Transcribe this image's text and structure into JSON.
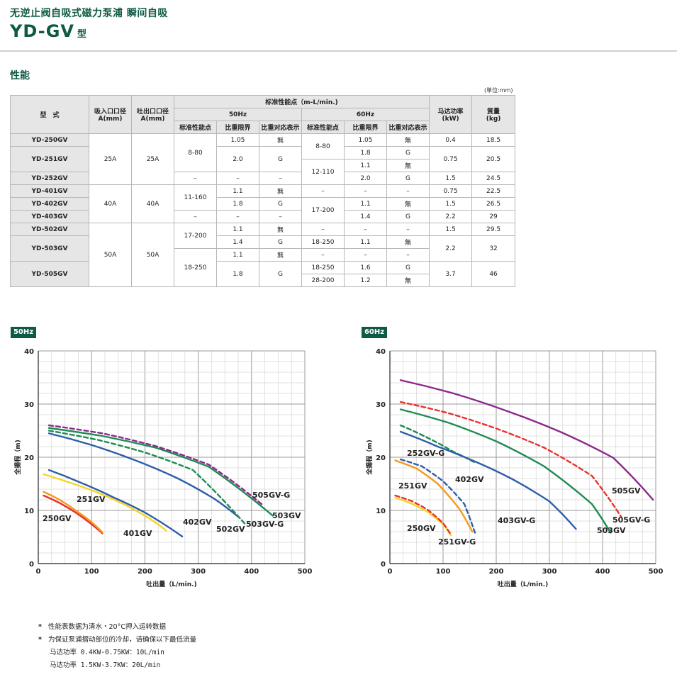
{
  "header": {
    "subtitle": "无逆止阀自吸式磁力泵浦 瞬间自吸",
    "model": "YD-GV",
    "model_suffix": "型"
  },
  "section_title": "性能",
  "unit_note": "(単位:mm)",
  "table": {
    "head": {
      "model": "型　式",
      "suction": "吸入口口径\nA(mm)",
      "discharge": "吐出口口径\nA(mm)",
      "perf": "标准性能点（m-L/min.)",
      "hz50": "50Hz",
      "hz60": "60Hz",
      "std_point": "标准性能点",
      "sg_limit": "比重限界",
      "sg_display": "比重对応表示",
      "power": "马达功率\n(kW)",
      "weight": "質量\n(kg)"
    },
    "rows": [
      [
        "YD-250GV",
        "25A",
        "25A",
        "8-80",
        "1.05",
        "無",
        "8-80",
        "1.05",
        "無",
        "0.4",
        "18.5"
      ],
      [
        "YD-251GV",
        "",
        "",
        "",
        "2.0",
        "G",
        "",
        "1.8",
        "G",
        "0.75",
        "20.5"
      ],
      [
        "",
        "",
        "",
        "",
        "",
        "",
        "12-110",
        "1.1",
        "無",
        "",
        ""
      ],
      [
        "YD-252GV",
        "",
        "",
        "–",
        "–",
        "–",
        "",
        "2.0",
        "G",
        "1.5",
        "24.5"
      ],
      [
        "YD-401GV",
        "40A",
        "40A",
        "11-160",
        "1.1",
        "無",
        "–",
        "–",
        "–",
        "0.75",
        "22.5"
      ],
      [
        "YD-402GV",
        "",
        "",
        "",
        "1.8",
        "G",
        "17-200",
        "1.1",
        "無",
        "1.5",
        "26.5"
      ],
      [
        "YD-403GV",
        "",
        "",
        "–",
        "–",
        "–",
        "",
        "1.4",
        "G",
        "2.2",
        "29"
      ],
      [
        "YD-502GV",
        "50A",
        "50A",
        "17-200",
        "1.1",
        "無",
        "–",
        "–",
        "–",
        "1.5",
        "29.5"
      ],
      [
        "YD-503GV",
        "",
        "",
        "",
        "1.4",
        "G",
        "18-250",
        "1.1",
        "無",
        "2.2",
        "32"
      ],
      [
        "",
        "",
        "",
        "18-250",
        "1.1",
        "無",
        "–",
        "–",
        "–",
        "",
        ""
      ],
      [
        "YD-505GV",
        "",
        "",
        "",
        "1.8",
        "G",
        "18-250",
        "1.6",
        "G",
        "3.7",
        "46"
      ],
      [
        "",
        "",
        "",
        "",
        "",
        "",
        "28-200",
        "1.2",
        "無",
        "",
        ""
      ]
    ]
  },
  "chart_data": [
    {
      "type": "line",
      "title": "50Hz",
      "xlabel": "吐出量（L/min.)",
      "ylabel": "全揚程（m)",
      "xlim": [
        0,
        500
      ],
      "ylim": [
        0,
        40
      ],
      "xticks": [
        "0",
        "100",
        "200",
        "300",
        "400",
        "500"
      ],
      "yticks": [
        "0",
        "10",
        "20",
        "30",
        "40"
      ],
      "grid": true,
      "series": [
        {
          "name": "250GV",
          "color": "#e8322c",
          "dashed": false,
          "x": [
            10,
            40,
            70,
            100,
            120
          ],
          "y": [
            12.8,
            11.4,
            9.6,
            7.4,
            5.7
          ]
        },
        {
          "name": "251GV",
          "color": "#f39a1c",
          "dashed": false,
          "x": [
            10,
            40,
            70,
            100,
            120
          ],
          "y": [
            13.5,
            12.0,
            10.0,
            7.8,
            5.9
          ]
        },
        {
          "name": "401GV",
          "color": "#f6d526",
          "dashed": false,
          "x": [
            10,
            60,
            110,
            160,
            210,
            240
          ],
          "y": [
            16.8,
            15.2,
            13.4,
            11.2,
            8.4,
            6.2
          ]
        },
        {
          "name": "402GV",
          "color": "#2e5ea8",
          "dashed": false,
          "x": [
            20,
            80,
            140,
            200,
            270
          ],
          "y": [
            17.6,
            15.2,
            12.5,
            9.6,
            5.1
          ]
        },
        {
          "name": "502GV",
          "color": "#2e5ea8",
          "dashed": false,
          "x": [
            20,
            100,
            180,
            260,
            330,
            375
          ],
          "y": [
            24.5,
            22.3,
            19.5,
            16.1,
            12.2,
            8.8
          ]
        },
        {
          "name": "503GV-G",
          "color": "#1f8c52",
          "dashed": true,
          "x": [
            20,
            110,
            200,
            290,
            390
          ],
          "y": [
            25.0,
            23.3,
            20.9,
            17.6,
            7.2
          ]
        },
        {
          "name": "503GV",
          "color": "#1f8c52",
          "dashed": false,
          "x": [
            20,
            120,
            220,
            320,
            440
          ],
          "y": [
            25.5,
            24.0,
            21.8,
            18.2,
            9.0
          ]
        },
        {
          "name": "505GV-G",
          "color": "#8a2a8c",
          "dashed": true,
          "x": [
            20,
            120,
            220,
            320,
            420
          ],
          "y": [
            26.0,
            24.5,
            22.1,
            18.6,
            11.1
          ]
        }
      ]
    },
    {
      "type": "line",
      "title": "60Hz",
      "xlabel": "吐出量（L/min.)",
      "ylabel": "全揚程（m)",
      "xlim": [
        0,
        500
      ],
      "ylim": [
        0,
        40
      ],
      "xticks": [
        "0",
        "100",
        "200",
        "300",
        "400",
        "500"
      ],
      "yticks": [
        "0",
        "10",
        "20",
        "30",
        "40"
      ],
      "grid": true,
      "series": [
        {
          "name": "250GV",
          "color": "#f6d526",
          "dashed": false,
          "x": [
            10,
            40,
            70,
            100,
            115
          ],
          "y": [
            12.4,
            11.3,
            9.8,
            7.4,
            5.3
          ]
        },
        {
          "name": "251GV-G",
          "color": "#e8322c",
          "dashed": true,
          "x": [
            10,
            40,
            70,
            100,
            115
          ],
          "y": [
            12.8,
            11.8,
            10.2,
            7.6,
            5.4
          ]
        },
        {
          "name": "251GV",
          "color": "#f39a1c",
          "dashed": false,
          "x": [
            10,
            50,
            90,
            130,
            155
          ],
          "y": [
            19.4,
            17.9,
            15.0,
            10.4,
            6.0
          ]
        },
        {
          "name": "252GV-G",
          "color": "#2e5ea8",
          "dashed": true,
          "x": [
            20,
            60,
            100,
            140,
            160
          ],
          "y": [
            19.6,
            18.3,
            15.5,
            11.2,
            5.8
          ]
        },
        {
          "name": "402GV",
          "color": "#1f8c52",
          "dashed": true,
          "x": [
            20,
            70,
            120,
            160
          ],
          "y": [
            26.0,
            23.7,
            21.0,
            19.0
          ]
        },
        {
          "name": "403GV-G",
          "color": "#2e5ea8",
          "dashed": false,
          "x": [
            20,
            90,
            160,
            230,
            300,
            350
          ],
          "y": [
            24.8,
            22.0,
            19.2,
            15.9,
            11.7,
            6.5
          ]
        },
        {
          "name": "503GV",
          "color": "#1f8c52",
          "dashed": false,
          "x": [
            20,
            110,
            200,
            290,
            380,
            415
          ],
          "y": [
            29.0,
            26.5,
            23.0,
            18.3,
            11.2,
            5.8
          ]
        },
        {
          "name": "505GV-G",
          "color": "#e8322c",
          "dashed": true,
          "x": [
            20,
            110,
            200,
            290,
            380,
            435
          ],
          "y": [
            30.4,
            28.3,
            25.4,
            21.8,
            16.5,
            8.8
          ]
        },
        {
          "name": "505GV",
          "color": "#8a2a8c",
          "dashed": false,
          "x": [
            20,
            120,
            220,
            320,
            420,
            495
          ],
          "y": [
            34.5,
            32.0,
            28.7,
            24.8,
            19.9,
            12.0
          ]
        }
      ]
    }
  ],
  "notes": {
    "n1": "性能表数据为清水・20°C押入运转数据",
    "n2": "为保证泵浦摺动部位的冷却，请确保以下最低流量",
    "n3": "马达功率 0.4KW-0.75KW：10L/min",
    "n4": "马达功率 1.5KW-3.7KW：20L/min",
    "star": "*"
  }
}
